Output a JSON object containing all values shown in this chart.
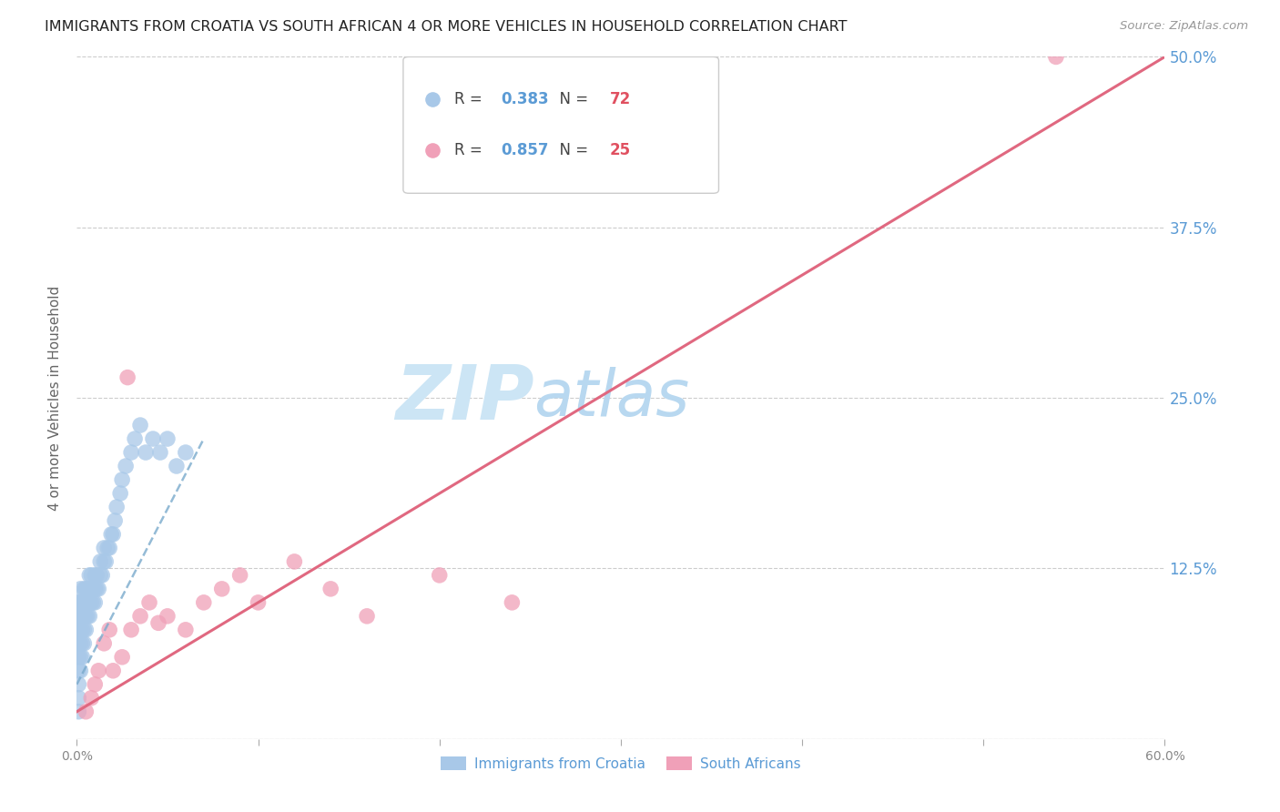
{
  "title": "IMMIGRANTS FROM CROATIA VS SOUTH AFRICAN 4 OR MORE VEHICLES IN HOUSEHOLD CORRELATION CHART",
  "source": "Source: ZipAtlas.com",
  "ylabel": "4 or more Vehicles in Household",
  "watermark": "ZIPatlas",
  "xlim": [
    0.0,
    0.6
  ],
  "ylim": [
    0.0,
    0.5
  ],
  "xticks": [
    0.0,
    0.1,
    0.2,
    0.3,
    0.4,
    0.5,
    0.6
  ],
  "yticks": [
    0.0,
    0.125,
    0.25,
    0.375,
    0.5
  ],
  "ytick_labels_right": [
    "12.5%",
    "25.0%",
    "37.5%",
    "50.0%"
  ],
  "yticks_right": [
    0.125,
    0.25,
    0.375,
    0.5
  ],
  "xtick_labels": [
    "0.0%",
    "",
    "",
    "",
    "",
    "",
    "60.0%"
  ],
  "legend_R_croatia": "0.383",
  "legend_N_croatia": "72",
  "legend_R_sa": "0.857",
  "legend_N_sa": "25",
  "legend_label_croatia": "Immigrants from Croatia",
  "legend_label_sa": "South Africans",
  "dot_color_croatia": "#a8c8e8",
  "dot_color_sa": "#f0a0b8",
  "line_color_croatia": "#7aaacc",
  "line_color_sa": "#e06880",
  "background_color": "#ffffff",
  "grid_color": "#cccccc",
  "tick_color_right": "#5b9bd5",
  "title_fontsize": 11.5,
  "source_fontsize": 9.5,
  "watermark_color": "#cce5f5",
  "watermark_fontsize": 60,
  "legend_color_R_croatia": "#5b9bd5",
  "legend_color_N_croatia": "#e05060",
  "legend_color_R_sa": "#5b9bd5",
  "legend_color_N_sa": "#e05060",
  "croatia_x": [
    0.001,
    0.001,
    0.001,
    0.001,
    0.001,
    0.001,
    0.001,
    0.001,
    0.001,
    0.002,
    0.002,
    0.002,
    0.002,
    0.002,
    0.002,
    0.002,
    0.003,
    0.003,
    0.003,
    0.003,
    0.003,
    0.004,
    0.004,
    0.004,
    0.004,
    0.004,
    0.005,
    0.005,
    0.005,
    0.005,
    0.006,
    0.006,
    0.006,
    0.007,
    0.007,
    0.007,
    0.007,
    0.008,
    0.008,
    0.008,
    0.009,
    0.009,
    0.01,
    0.01,
    0.01,
    0.011,
    0.011,
    0.012,
    0.013,
    0.013,
    0.014,
    0.015,
    0.015,
    0.016,
    0.017,
    0.018,
    0.019,
    0.02,
    0.021,
    0.022,
    0.024,
    0.025,
    0.027,
    0.03,
    0.032,
    0.035,
    0.038,
    0.042,
    0.046,
    0.05,
    0.055,
    0.06
  ],
  "croatia_y": [
    0.02,
    0.04,
    0.05,
    0.06,
    0.07,
    0.08,
    0.09,
    0.1,
    0.03,
    0.05,
    0.06,
    0.07,
    0.08,
    0.09,
    0.1,
    0.11,
    0.06,
    0.07,
    0.08,
    0.09,
    0.1,
    0.07,
    0.08,
    0.09,
    0.1,
    0.11,
    0.08,
    0.09,
    0.1,
    0.11,
    0.09,
    0.1,
    0.11,
    0.09,
    0.1,
    0.11,
    0.12,
    0.1,
    0.11,
    0.12,
    0.1,
    0.11,
    0.1,
    0.11,
    0.12,
    0.11,
    0.12,
    0.11,
    0.12,
    0.13,
    0.12,
    0.13,
    0.14,
    0.13,
    0.14,
    0.14,
    0.15,
    0.15,
    0.16,
    0.17,
    0.18,
    0.19,
    0.2,
    0.21,
    0.22,
    0.23,
    0.21,
    0.22,
    0.21,
    0.22,
    0.2,
    0.21
  ],
  "sa_x": [
    0.005,
    0.008,
    0.01,
    0.012,
    0.015,
    0.018,
    0.02,
    0.025,
    0.028,
    0.03,
    0.035,
    0.04,
    0.045,
    0.05,
    0.06,
    0.07,
    0.08,
    0.09,
    0.1,
    0.12,
    0.14,
    0.16,
    0.2,
    0.24,
    0.54
  ],
  "sa_y": [
    0.02,
    0.03,
    0.04,
    0.05,
    0.07,
    0.08,
    0.05,
    0.06,
    0.265,
    0.08,
    0.09,
    0.1,
    0.085,
    0.09,
    0.08,
    0.1,
    0.11,
    0.12,
    0.1,
    0.13,
    0.11,
    0.09,
    0.12,
    0.1,
    0.5
  ],
  "cro_line_x0": 0.0,
  "cro_line_y0": 0.04,
  "cro_line_x1": 0.07,
  "cro_line_y1": 0.22,
  "sa_line_x0": 0.0,
  "sa_line_y0": 0.02,
  "sa_line_x1": 0.6,
  "sa_line_y1": 0.5
}
